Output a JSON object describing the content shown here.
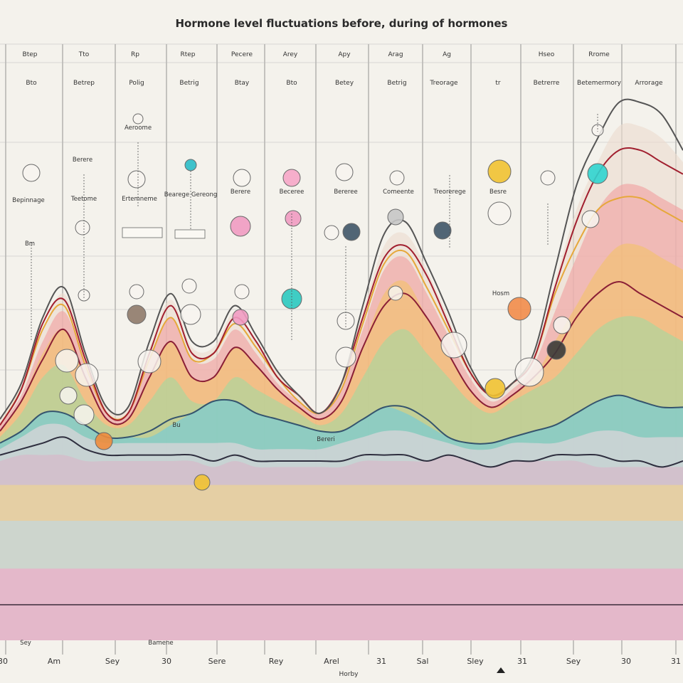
{
  "chart_data": {
    "type": "area",
    "title": "Hormone level fluctuations before, during of hormones",
    "xlabel": "Horby",
    "ylabel": "",
    "grid": true,
    "x_ticks": [
      "30",
      "Am",
      "Sey",
      "30",
      "Sere",
      "Rey",
      "Arel",
      "31",
      "Sal",
      "Sley",
      "31",
      "Sey",
      "30",
      "31"
    ],
    "top_row_labels": [
      "Btep",
      "Tto",
      "Rp",
      "Rtep",
      "Pecere",
      "Arey",
      "Apy",
      "Arag",
      "Ag",
      "Hseo",
      "Rrome"
    ],
    "second_row_labels": [
      "Bto",
      "Betrep",
      "Polig",
      "Betrig",
      "Btay",
      "Bto",
      "Betey",
      "Betrig",
      "Treorage",
      "tr",
      "Betrerre",
      "Betemermory",
      "Arrorage"
    ],
    "annotation_labels": [
      "Bepinnage",
      "Teetome",
      "Ertemneme",
      "Bearege Gereong",
      "Berere",
      "Beceree",
      "Bereree",
      "Comeente",
      "Treorerege",
      "Besre"
    ],
    "misc_labels": [
      "Aeroome",
      "Bm",
      "Berere",
      "Bu",
      "Bereri",
      "Hosm",
      "Sey",
      "Bamene"
    ],
    "x": [
      0,
      30,
      60,
      90,
      120,
      150,
      180,
      210,
      240,
      270,
      300,
      330,
      360,
      390,
      420,
      450,
      480,
      510,
      540,
      570,
      600,
      630,
      660,
      690,
      720,
      750,
      780,
      810,
      840,
      870,
      900,
      930,
      960
    ],
    "ylim": [
      0,
      100
    ],
    "series": [
      {
        "color": "#f2a6c8",
        "values": [
          12,
          12,
          12,
          12,
          12,
          12,
          12,
          12,
          12,
          12,
          12,
          12,
          12,
          12,
          12,
          12,
          12,
          12,
          12,
          12,
          12,
          12,
          12,
          12,
          12,
          12,
          12,
          12,
          12,
          12,
          12,
          12,
          12
        ]
      },
      {
        "color": "#bfd8e6",
        "values": [
          20,
          20,
          20,
          20,
          20,
          20,
          20,
          20,
          20,
          20,
          20,
          20,
          20,
          20,
          20,
          20,
          20,
          20,
          20,
          20,
          20,
          20,
          20,
          20,
          20,
          20,
          20,
          20,
          20,
          20,
          20,
          20,
          20
        ]
      },
      {
        "color": "#f1d98a",
        "values": [
          26,
          26,
          26,
          26,
          26,
          26,
          26,
          26,
          26,
          26,
          26,
          26,
          26,
          26,
          26,
          26,
          26,
          26,
          26,
          26,
          26,
          26,
          26,
          26,
          26,
          26,
          26,
          26,
          26,
          26,
          26,
          26,
          26
        ]
      },
      {
        "color": "#d9b7c8",
        "values": [
          30,
          31,
          31,
          31,
          30,
          30,
          30,
          30,
          30,
          30,
          29,
          30,
          29,
          29,
          29,
          29,
          29,
          30,
          30,
          30,
          30,
          31,
          30,
          29,
          30,
          30,
          30,
          30,
          29,
          29,
          29,
          29,
          29
        ]
      },
      {
        "color": "#ead6de",
        "values": [
          32,
          34,
          36,
          36,
          34,
          33,
          33,
          33,
          33,
          33,
          33,
          33,
          32,
          32,
          32,
          32,
          33,
          34,
          35,
          35,
          34,
          33,
          32,
          32,
          33,
          33,
          33,
          34,
          35,
          35,
          34,
          34,
          34
        ]
      },
      {
        "color": "#6fc9dc",
        "values": [
          33,
          35,
          38,
          38,
          36,
          34,
          34,
          34,
          36,
          38,
          40,
          40,
          38,
          37,
          36,
          35,
          35,
          37,
          39,
          38,
          36,
          34,
          33,
          33,
          34,
          35,
          36,
          38,
          40,
          41,
          40,
          39,
          39
        ]
      },
      {
        "color": "#a4d8a0",
        "values": [
          34,
          38,
          44,
          46,
          40,
          36,
          36,
          40,
          44,
          40,
          40,
          44,
          42,
          40,
          38,
          36,
          38,
          44,
          50,
          52,
          48,
          44,
          40,
          38,
          40,
          42,
          44,
          48,
          52,
          54,
          54,
          52,
          50
        ]
      },
      {
        "color": "#f4c26b",
        "values": [
          35,
          40,
          48,
          52,
          44,
          37,
          37,
          44,
          50,
          44,
          44,
          49,
          46,
          42,
          39,
          37,
          40,
          49,
          58,
          60,
          54,
          48,
          42,
          39,
          41,
          44,
          50,
          56,
          62,
          66,
          66,
          64,
          62
        ]
      },
      {
        "color": "#f19f9f",
        "values": [
          36,
          41,
          50,
          55,
          46,
          38,
          38,
          47,
          54,
          47,
          47,
          52,
          48,
          43,
          40,
          38,
          42,
          52,
          62,
          64,
          58,
          51,
          44,
          40,
          42,
          46,
          55,
          64,
          72,
          76,
          76,
          74,
          72
        ]
      },
      {
        "color": "#ecdccf",
        "values": [
          37,
          43,
          52,
          58,
          48,
          39,
          39,
          49,
          57,
          49,
          49,
          55,
          50,
          45,
          41,
          38,
          43,
          55,
          66,
          68,
          62,
          54,
          46,
          41,
          43,
          47,
          60,
          72,
          80,
          86,
          86,
          84,
          80
        ]
      }
    ],
    "lines": [
      {
        "color": "#2e2e3e",
        "values": [
          31,
          32,
          33,
          34,
          32,
          31,
          31,
          31,
          31,
          31,
          30,
          31,
          30,
          30,
          30,
          30,
          30,
          31,
          31,
          31,
          30,
          31,
          30,
          29,
          30,
          30,
          31,
          31,
          31,
          30,
          30,
          29,
          30
        ]
      },
      {
        "color": "#35546e",
        "values": [
          33,
          35,
          38,
          38,
          36,
          34,
          34,
          35,
          37,
          38,
          40,
          40,
          38,
          37,
          36,
          35,
          35,
          37,
          39,
          39,
          37,
          34,
          33,
          33,
          34,
          35,
          36,
          38,
          40,
          41,
          40,
          39,
          39
        ]
      },
      {
        "color": "#8a1f36",
        "values": [
          35,
          40,
          47,
          52,
          44,
          37,
          37,
          44,
          50,
          44,
          44,
          49,
          46,
          42,
          39,
          37,
          40,
          49,
          56,
          58,
          54,
          48,
          42,
          39,
          41,
          44,
          48,
          54,
          58,
          60,
          58,
          56,
          54
        ]
      },
      {
        "color": "#e6a83a",
        "values": [
          36,
          42,
          52,
          56,
          46,
          38,
          38,
          47,
          54,
          47,
          48,
          53,
          49,
          44,
          40,
          38,
          42,
          53,
          63,
          65,
          59,
          52,
          45,
          41,
          43,
          47,
          58,
          66,
          72,
          74,
          74,
          72,
          70
        ]
      },
      {
        "color": "#a11f2f",
        "values": [
          36,
          42,
          53,
          57,
          47,
          38,
          38,
          48,
          56,
          48,
          48,
          54,
          50,
          44,
          41,
          38,
          43,
          54,
          64,
          66,
          61,
          53,
          45,
          41,
          43,
          47,
          59,
          70,
          78,
          82,
          82,
          80,
          78
        ]
      },
      {
        "color": "#555555",
        "values": [
          37,
          43,
          54,
          59,
          48,
          39,
          39,
          50,
          58,
          50,
          50,
          56,
          51,
          45,
          41,
          38,
          43,
          56,
          68,
          70,
          63,
          55,
          46,
          41,
          43,
          48,
          62,
          76,
          84,
          90,
          90,
          88,
          82
        ]
      }
    ]
  }
}
